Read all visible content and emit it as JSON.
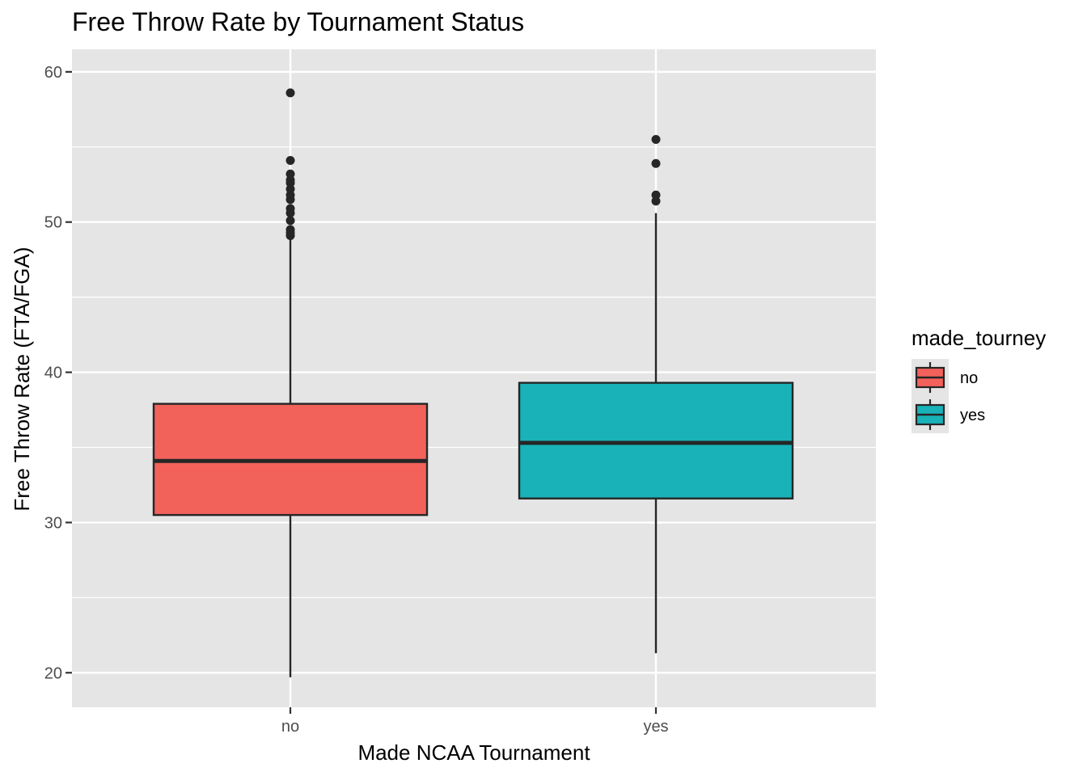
{
  "chart_data": {
    "type": "boxplot",
    "title": "Free Throw Rate by Tournament Status",
    "xlabel": "Made NCAA Tournament",
    "ylabel": "Free Throw Rate (FTA/FGA)",
    "categories": [
      "no",
      "yes"
    ],
    "ylim": [
      17.7,
      61.5
    ],
    "yticks": [
      20,
      30,
      40,
      50,
      60
    ],
    "grid": true,
    "legend": {
      "title": "made_tourney",
      "position": "right",
      "entries": [
        "no",
        "yes"
      ]
    },
    "boxes": [
      {
        "category": "no",
        "min": 19.7,
        "q1": 30.5,
        "median": 34.1,
        "q3": 37.9,
        "max": 48.9,
        "outliers": [
          49.1,
          49.3,
          49.5,
          50.1,
          50.6,
          50.9,
          51.5,
          51.8,
          52.2,
          52.6,
          52.8,
          53.2,
          54.1,
          58.6
        ]
      },
      {
        "category": "yes",
        "min": 21.3,
        "q1": 31.6,
        "median": 35.3,
        "q3": 39.3,
        "max": 50.6,
        "outliers": [
          51.4,
          51.8,
          53.9,
          55.5
        ]
      }
    ]
  },
  "colors": {
    "no": "#F8766D",
    "yes": "#00BFC4",
    "no_fill": "#F3615B",
    "yes_fill": "#18B2B8",
    "panel": "#E5E5E5",
    "grid": "#FFFFFF",
    "box_line": "#262626"
  }
}
